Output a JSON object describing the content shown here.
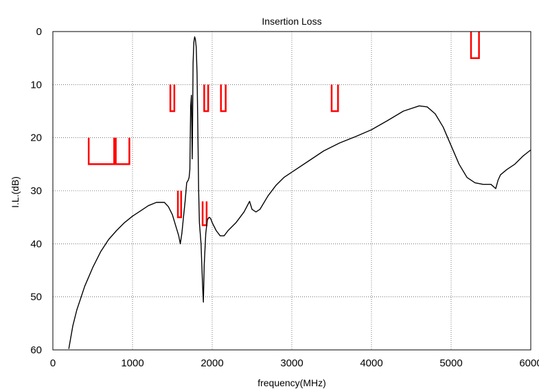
{
  "chart_data": {
    "type": "line",
    "title": "Insertion Loss",
    "xlabel": "frequency(MHz)",
    "ylabel": "I.L.(dB)",
    "xlim": [
      0,
      6000
    ],
    "ylim": [
      0,
      60
    ],
    "y_inverted": true,
    "grid": true,
    "x_ticks": [
      0,
      1000,
      2000,
      3000,
      4000,
      5000,
      6000
    ],
    "y_ticks": [
      0,
      10,
      20,
      30,
      40,
      50,
      60
    ],
    "x_tick_labels": [
      "0",
      "1000",
      "2000",
      "3000",
      "4000",
      "5000",
      "6000"
    ],
    "y_tick_labels": [
      "0",
      "10",
      "20",
      "30",
      "40",
      "50",
      "60"
    ],
    "colors": {
      "trace": "#000000",
      "mask": "#ff0000",
      "grid": "#555555"
    },
    "series": [
      {
        "color": "#000000",
        "x": [
          200,
          250,
          300,
          400,
          500,
          600,
          700,
          800,
          900,
          1000,
          1100,
          1200,
          1300,
          1400,
          1450,
          1500,
          1550,
          1580,
          1600,
          1620,
          1640,
          1660,
          1680,
          1700,
          1710,
          1720,
          1730,
          1740,
          1750,
          1760,
          1770,
          1780,
          1790,
          1800,
          1810,
          1820,
          1830,
          1840,
          1850,
          1860,
          1870,
          1880,
          1890,
          1900,
          1920,
          1940,
          1960,
          1980,
          2000,
          2050,
          2100,
          2150,
          2200,
          2300,
          2400,
          2470,
          2500,
          2550,
          2600,
          2700,
          2800,
          2900,
          3000,
          3200,
          3400,
          3600,
          3800,
          4000,
          4200,
          4400,
          4600,
          4700,
          4800,
          4900,
          5000,
          5100,
          5200,
          5300,
          5400,
          5500,
          5560,
          5590,
          5620,
          5700,
          5800,
          5900,
          6000
        ],
        "y": [
          59.8,
          55.5,
          52.5,
          48,
          44.5,
          41.5,
          39.2,
          37.5,
          36,
          34.8,
          33.8,
          32.8,
          32.2,
          32.2,
          33,
          34.5,
          37,
          38.5,
          40,
          38,
          35,
          32,
          28.5,
          28,
          27.5,
          26,
          14,
          12,
          24,
          6,
          2,
          1,
          1.5,
          3,
          8,
          18,
          30,
          36,
          38,
          40,
          44,
          48,
          51,
          44,
          38,
          35.5,
          35,
          35.2,
          36,
          37.5,
          38.5,
          38.5,
          37.5,
          36,
          34,
          32,
          33.5,
          34,
          33.5,
          31,
          29,
          27.5,
          26.5,
          24.5,
          22.5,
          21,
          19.8,
          18.5,
          16.8,
          15,
          14,
          14.2,
          15.5,
          18,
          21.5,
          25,
          27.5,
          28.5,
          28.8,
          28.8,
          29.6,
          28,
          27,
          26,
          25,
          23.5,
          22.3
        ]
      }
    ],
    "masks": [
      {
        "x": [
          450,
          450,
          770,
          770
        ],
        "y": [
          20,
          25,
          25,
          20
        ]
      },
      {
        "x": [
          790,
          790,
          960,
          960
        ],
        "y": [
          20,
          25,
          25,
          20
        ]
      },
      {
        "x": [
          1475,
          1475,
          1525,
          1525
        ],
        "y": [
          10,
          15,
          15,
          10
        ]
      },
      {
        "x": [
          1570,
          1570,
          1610,
          1610
        ],
        "y": [
          30,
          35,
          35,
          30
        ]
      },
      {
        "x": [
          1880,
          1880,
          1930,
          1930
        ],
        "y": [
          32,
          36.5,
          36.5,
          32
        ]
      },
      {
        "x": [
          1900,
          1900,
          1950,
          1950
        ],
        "y": [
          10,
          15,
          15,
          10
        ]
      },
      {
        "x": [
          2110,
          2110,
          2170,
          2170
        ],
        "y": [
          10,
          15,
          15,
          10
        ]
      },
      {
        "x": [
          3500,
          3500,
          3580,
          3580
        ],
        "y": [
          10,
          15,
          15,
          10
        ]
      },
      {
        "x": [
          5250,
          5250,
          5350,
          5350
        ],
        "y": [
          0,
          5,
          5,
          0
        ]
      }
    ]
  }
}
